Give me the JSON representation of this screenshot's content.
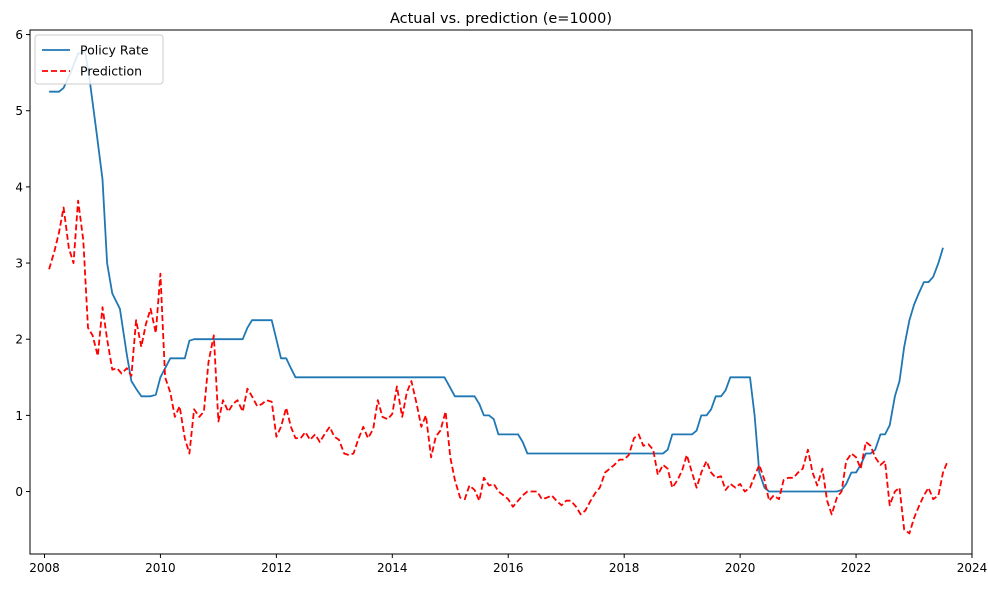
{
  "chart_data": {
    "type": "line",
    "title": "Actual vs. prediction (e=1000)",
    "xlabel": "",
    "ylabel": "",
    "xlim": [
      2007.75,
      2024.0
    ],
    "ylim": [
      -0.82,
      6.06
    ],
    "xticks": [
      2008,
      2010,
      2012,
      2014,
      2016,
      2018,
      2020,
      2022,
      2024
    ],
    "xtick_labels": [
      "2008",
      "2010",
      "2012",
      "2014",
      "2016",
      "2018",
      "2020",
      "2022",
      "2024"
    ],
    "yticks": [
      0,
      1,
      2,
      3,
      4,
      5,
      6
    ],
    "ytick_labels": [
      "0",
      "1",
      "2",
      "3",
      "4",
      "5",
      "6"
    ],
    "grid": false,
    "legend_position": "top-left",
    "series": [
      {
        "name": "Policy Rate",
        "color": "#1f77b4",
        "dash": "solid",
        "points": [
          [
            2008.08,
            5.25
          ],
          [
            2008.25,
            5.25
          ],
          [
            2008.33,
            5.3
          ],
          [
            2008.45,
            5.5
          ],
          [
            2008.58,
            5.75
          ],
          [
            2008.7,
            5.78
          ],
          [
            2008.78,
            5.4
          ],
          [
            2008.9,
            4.7
          ],
          [
            2009.0,
            4.1
          ],
          [
            2009.08,
            3.0
          ],
          [
            2009.17,
            2.6
          ],
          [
            2009.3,
            2.4
          ],
          [
            2009.42,
            1.8
          ],
          [
            2009.5,
            1.45
          ],
          [
            2009.58,
            1.35
          ],
          [
            2009.67,
            1.25
          ],
          [
            2009.83,
            1.25
          ],
          [
            2009.92,
            1.27
          ],
          [
            2010.0,
            1.5
          ],
          [
            2010.17,
            1.75
          ],
          [
            2010.33,
            1.75
          ],
          [
            2010.42,
            1.75
          ],
          [
            2010.5,
            1.98
          ],
          [
            2010.58,
            2.0
          ],
          [
            2010.75,
            2.0
          ],
          [
            2011.0,
            2.0
          ],
          [
            2011.33,
            2.0
          ],
          [
            2011.42,
            2.0
          ],
          [
            2011.5,
            2.15
          ],
          [
            2011.58,
            2.25
          ],
          [
            2011.92,
            2.25
          ],
          [
            2012.08,
            1.75
          ],
          [
            2012.17,
            1.75
          ],
          [
            2012.25,
            1.62
          ],
          [
            2012.33,
            1.5
          ],
          [
            2013.0,
            1.5
          ],
          [
            2014.0,
            1.5
          ],
          [
            2014.75,
            1.5
          ],
          [
            2014.9,
            1.5
          ],
          [
            2015.08,
            1.25
          ],
          [
            2015.42,
            1.25
          ],
          [
            2015.5,
            1.15
          ],
          [
            2015.58,
            1.0
          ],
          [
            2015.67,
            1.0
          ],
          [
            2015.75,
            0.95
          ],
          [
            2015.83,
            0.75
          ],
          [
            2016.17,
            0.75
          ],
          [
            2016.25,
            0.65
          ],
          [
            2016.33,
            0.5
          ],
          [
            2017.0,
            0.5
          ],
          [
            2018.0,
            0.5
          ],
          [
            2018.67,
            0.5
          ],
          [
            2018.75,
            0.55
          ],
          [
            2018.83,
            0.75
          ],
          [
            2019.17,
            0.75
          ],
          [
            2019.25,
            0.8
          ],
          [
            2019.33,
            1.0
          ],
          [
            2019.42,
            1.0
          ],
          [
            2019.5,
            1.08
          ],
          [
            2019.58,
            1.25
          ],
          [
            2019.67,
            1.25
          ],
          [
            2019.75,
            1.33
          ],
          [
            2019.83,
            1.5
          ],
          [
            2020.17,
            1.5
          ],
          [
            2020.25,
            1.0
          ],
          [
            2020.33,
            0.25
          ],
          [
            2020.42,
            0.05
          ],
          [
            2020.5,
            0.0
          ],
          [
            2021.0,
            0.0
          ],
          [
            2021.67,
            0.0
          ],
          [
            2021.75,
            0.02
          ],
          [
            2021.83,
            0.1
          ],
          [
            2021.92,
            0.25
          ],
          [
            2022.0,
            0.25
          ],
          [
            2022.08,
            0.35
          ],
          [
            2022.17,
            0.5
          ],
          [
            2022.25,
            0.5
          ],
          [
            2022.33,
            0.55
          ],
          [
            2022.42,
            0.75
          ],
          [
            2022.5,
            0.75
          ],
          [
            2022.58,
            0.87
          ],
          [
            2022.67,
            1.25
          ],
          [
            2022.75,
            1.45
          ],
          [
            2022.83,
            1.9
          ],
          [
            2022.92,
            2.25
          ],
          [
            2023.0,
            2.45
          ],
          [
            2023.08,
            2.6
          ],
          [
            2023.17,
            2.75
          ],
          [
            2023.25,
            2.75
          ],
          [
            2023.33,
            2.82
          ],
          [
            2023.42,
            3.0
          ],
          [
            2023.5,
            3.2
          ]
        ]
      },
      {
        "name": "Prediction",
        "color": "#ff0000",
        "dash": "dashed",
        "points": [
          [
            2008.08,
            2.92
          ],
          [
            2008.17,
            3.15
          ],
          [
            2008.25,
            3.4
          ],
          [
            2008.33,
            3.73
          ],
          [
            2008.42,
            3.2
          ],
          [
            2008.5,
            3.0
          ],
          [
            2008.58,
            3.82
          ],
          [
            2008.67,
            3.3
          ],
          [
            2008.75,
            2.15
          ],
          [
            2008.83,
            2.05
          ],
          [
            2008.92,
            1.78
          ],
          [
            2009.0,
            2.42
          ],
          [
            2009.08,
            2.0
          ],
          [
            2009.17,
            1.6
          ],
          [
            2009.25,
            1.62
          ],
          [
            2009.33,
            1.55
          ],
          [
            2009.42,
            1.62
          ],
          [
            2009.5,
            1.52
          ],
          [
            2009.58,
            2.25
          ],
          [
            2009.67,
            1.9
          ],
          [
            2009.75,
            2.2
          ],
          [
            2009.83,
            2.4
          ],
          [
            2009.92,
            2.08
          ],
          [
            2010.0,
            2.86
          ],
          [
            2010.08,
            1.5
          ],
          [
            2010.17,
            1.3
          ],
          [
            2010.25,
            0.98
          ],
          [
            2010.33,
            1.12
          ],
          [
            2010.42,
            0.7
          ],
          [
            2010.5,
            0.5
          ],
          [
            2010.58,
            1.08
          ],
          [
            2010.67,
            0.98
          ],
          [
            2010.75,
            1.05
          ],
          [
            2010.83,
            1.7
          ],
          [
            2010.92,
            2.05
          ],
          [
            2011.0,
            0.92
          ],
          [
            2011.08,
            1.2
          ],
          [
            2011.17,
            1.05
          ],
          [
            2011.25,
            1.15
          ],
          [
            2011.33,
            1.2
          ],
          [
            2011.42,
            1.05
          ],
          [
            2011.5,
            1.35
          ],
          [
            2011.58,
            1.25
          ],
          [
            2011.67,
            1.12
          ],
          [
            2011.75,
            1.15
          ],
          [
            2011.83,
            1.2
          ],
          [
            2011.92,
            1.18
          ],
          [
            2012.0,
            0.72
          ],
          [
            2012.08,
            0.85
          ],
          [
            2012.17,
            1.1
          ],
          [
            2012.25,
            0.85
          ],
          [
            2012.33,
            0.7
          ],
          [
            2012.42,
            0.7
          ],
          [
            2012.5,
            0.78
          ],
          [
            2012.58,
            0.68
          ],
          [
            2012.67,
            0.75
          ],
          [
            2012.75,
            0.65
          ],
          [
            2012.83,
            0.75
          ],
          [
            2012.92,
            0.85
          ],
          [
            2013.0,
            0.72
          ],
          [
            2013.08,
            0.68
          ],
          [
            2013.17,
            0.5
          ],
          [
            2013.25,
            0.48
          ],
          [
            2013.33,
            0.5
          ],
          [
            2013.42,
            0.7
          ],
          [
            2013.5,
            0.85
          ],
          [
            2013.58,
            0.7
          ],
          [
            2013.67,
            0.82
          ],
          [
            2013.75,
            1.2
          ],
          [
            2013.83,
            0.98
          ],
          [
            2013.92,
            0.95
          ],
          [
            2014.0,
            1.02
          ],
          [
            2014.08,
            1.38
          ],
          [
            2014.17,
            0.98
          ],
          [
            2014.25,
            1.3
          ],
          [
            2014.33,
            1.45
          ],
          [
            2014.42,
            1.15
          ],
          [
            2014.5,
            0.85
          ],
          [
            2014.58,
            1.0
          ],
          [
            2014.67,
            0.45
          ],
          [
            2014.75,
            0.72
          ],
          [
            2014.83,
            0.8
          ],
          [
            2014.92,
            1.05
          ],
          [
            2015.0,
            0.45
          ],
          [
            2015.08,
            0.15
          ],
          [
            2015.17,
            -0.08
          ],
          [
            2015.25,
            -0.1
          ],
          [
            2015.33,
            0.08
          ],
          [
            2015.42,
            0.02
          ],
          [
            2015.5,
            -0.12
          ],
          [
            2015.58,
            0.18
          ],
          [
            2015.67,
            0.08
          ],
          [
            2015.75,
            0.1
          ],
          [
            2015.83,
            0.0
          ],
          [
            2015.92,
            -0.05
          ],
          [
            2016.0,
            -0.1
          ],
          [
            2016.08,
            -0.2
          ],
          [
            2016.17,
            -0.12
          ],
          [
            2016.25,
            -0.05
          ],
          [
            2016.33,
            0.0
          ],
          [
            2016.42,
            0.0
          ],
          [
            2016.5,
            0.0
          ],
          [
            2016.58,
            -0.1
          ],
          [
            2016.67,
            -0.08
          ],
          [
            2016.75,
            -0.05
          ],
          [
            2016.83,
            -0.12
          ],
          [
            2016.92,
            -0.18
          ],
          [
            2017.0,
            -0.12
          ],
          [
            2017.08,
            -0.12
          ],
          [
            2017.17,
            -0.2
          ],
          [
            2017.25,
            -0.3
          ],
          [
            2017.33,
            -0.25
          ],
          [
            2017.42,
            -0.12
          ],
          [
            2017.5,
            -0.02
          ],
          [
            2017.58,
            0.05
          ],
          [
            2017.67,
            0.25
          ],
          [
            2017.75,
            0.3
          ],
          [
            2017.83,
            0.35
          ],
          [
            2017.92,
            0.42
          ],
          [
            2018.0,
            0.42
          ],
          [
            2018.08,
            0.48
          ],
          [
            2018.17,
            0.7
          ],
          [
            2018.25,
            0.75
          ],
          [
            2018.33,
            0.6
          ],
          [
            2018.42,
            0.62
          ],
          [
            2018.5,
            0.55
          ],
          [
            2018.58,
            0.22
          ],
          [
            2018.67,
            0.35
          ],
          [
            2018.75,
            0.3
          ],
          [
            2018.83,
            0.05
          ],
          [
            2018.92,
            0.15
          ],
          [
            2019.0,
            0.28
          ],
          [
            2019.08,
            0.48
          ],
          [
            2019.17,
            0.25
          ],
          [
            2019.25,
            0.05
          ],
          [
            2019.33,
            0.25
          ],
          [
            2019.42,
            0.4
          ],
          [
            2019.5,
            0.25
          ],
          [
            2019.58,
            0.18
          ],
          [
            2019.67,
            0.2
          ],
          [
            2019.75,
            0.02
          ],
          [
            2019.83,
            0.1
          ],
          [
            2019.92,
            0.05
          ],
          [
            2020.0,
            0.1
          ],
          [
            2020.08,
            0.0
          ],
          [
            2020.17,
            0.05
          ],
          [
            2020.25,
            0.2
          ],
          [
            2020.33,
            0.35
          ],
          [
            2020.42,
            0.15
          ],
          [
            2020.5,
            -0.12
          ],
          [
            2020.58,
            -0.05
          ],
          [
            2020.67,
            -0.1
          ],
          [
            2020.75,
            0.15
          ],
          [
            2020.83,
            0.18
          ],
          [
            2020.92,
            0.18
          ],
          [
            2021.0,
            0.25
          ],
          [
            2021.08,
            0.3
          ],
          [
            2021.17,
            0.55
          ],
          [
            2021.25,
            0.25
          ],
          [
            2021.33,
            0.08
          ],
          [
            2021.42,
            0.3
          ],
          [
            2021.5,
            -0.12
          ],
          [
            2021.58,
            -0.3
          ],
          [
            2021.67,
            -0.08
          ],
          [
            2021.75,
            0.0
          ],
          [
            2021.83,
            0.4
          ],
          [
            2021.92,
            0.5
          ],
          [
            2022.0,
            0.45
          ],
          [
            2022.08,
            0.3
          ],
          [
            2022.17,
            0.65
          ],
          [
            2022.25,
            0.6
          ],
          [
            2022.33,
            0.45
          ],
          [
            2022.42,
            0.35
          ],
          [
            2022.5,
            0.4
          ],
          [
            2022.58,
            -0.18
          ],
          [
            2022.67,
            0.0
          ],
          [
            2022.75,
            0.05
          ],
          [
            2022.83,
            -0.5
          ],
          [
            2022.92,
            -0.55
          ],
          [
            2023.0,
            -0.35
          ],
          [
            2023.08,
            -0.2
          ],
          [
            2023.17,
            -0.05
          ],
          [
            2023.25,
            0.05
          ],
          [
            2023.33,
            -0.1
          ],
          [
            2023.42,
            -0.05
          ],
          [
            2023.5,
            0.25
          ],
          [
            2023.58,
            0.4
          ]
        ]
      }
    ]
  }
}
